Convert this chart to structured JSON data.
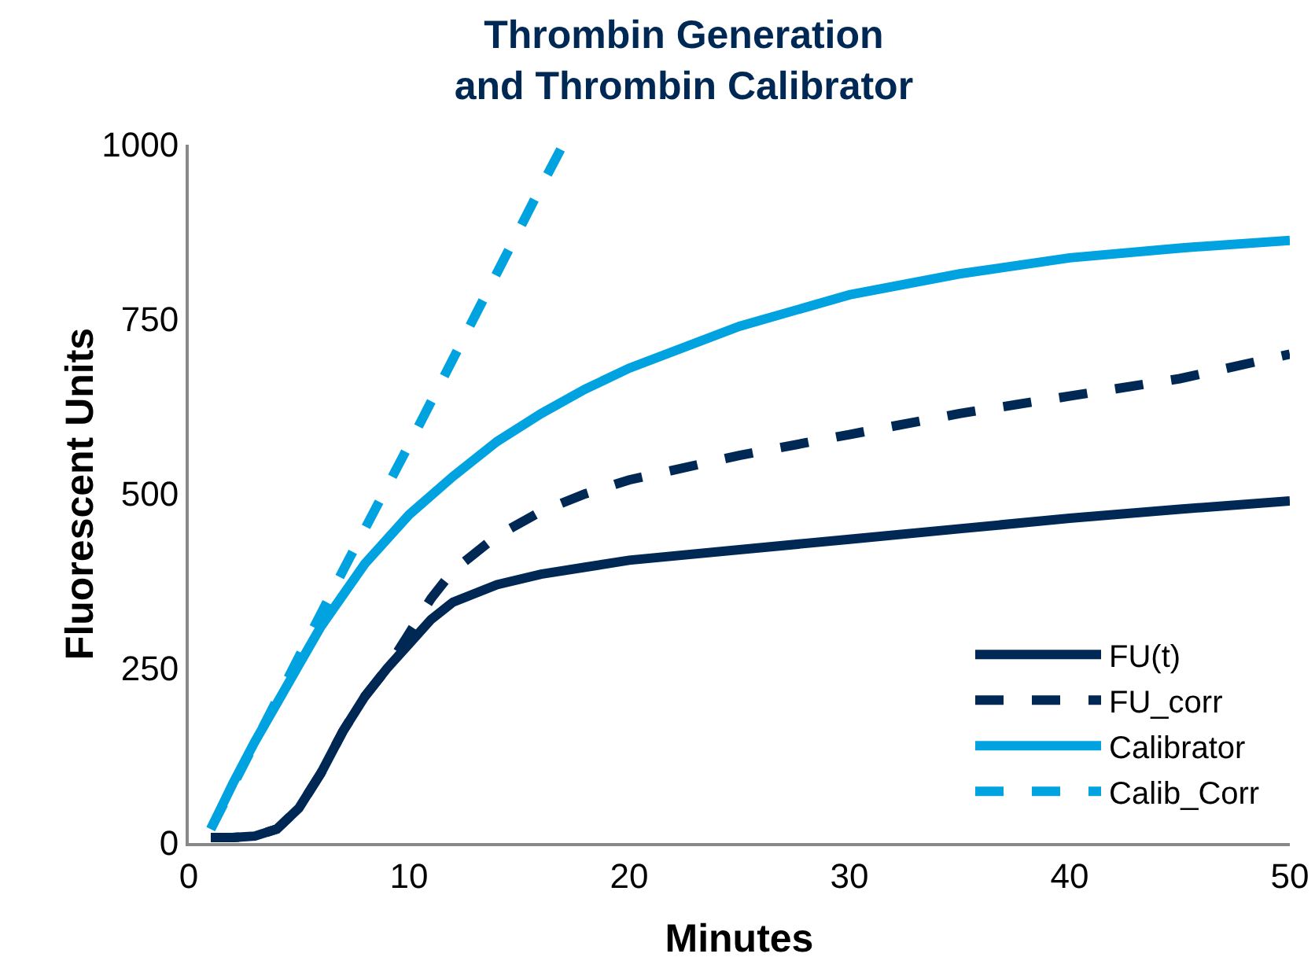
{
  "chart_data": {
    "type": "line",
    "title": "Thrombin Generation\nand Thrombin Calibrator",
    "xlabel": "Minutes",
    "ylabel": "Fluorescent Units",
    "xlim": [
      0,
      50
    ],
    "xticks": [
      0,
      10,
      20,
      30,
      40,
      50
    ],
    "ylim": [
      0,
      1000
    ],
    "yticks": [
      0,
      250,
      500,
      750,
      1000
    ],
    "grid": false,
    "legend": "bottom right",
    "marker": "none",
    "series": [
      {
        "name": "FU(t)",
        "color": "#002855",
        "line_style": "solid",
        "x": [
          1,
          2,
          3,
          4,
          5,
          6,
          7,
          8,
          9,
          10,
          11,
          12,
          14,
          16,
          18,
          20,
          25,
          30,
          35,
          40,
          45,
          50
        ],
        "values": [
          8,
          8,
          10,
          20,
          50,
          100,
          160,
          210,
          250,
          285,
          320,
          345,
          370,
          385,
          395,
          405,
          420,
          435,
          450,
          465,
          478,
          490
        ]
      },
      {
        "name": "FU_corr",
        "color": "#002855",
        "line_style": "dashed",
        "x": [
          1,
          2,
          3,
          4,
          5,
          6,
          7,
          8,
          9,
          10,
          11,
          12,
          14,
          16,
          18,
          20,
          25,
          30,
          35,
          40,
          45,
          50
        ],
        "values": [
          8,
          8,
          10,
          20,
          50,
          100,
          160,
          210,
          250,
          300,
          350,
          390,
          440,
          475,
          500,
          520,
          555,
          585,
          615,
          640,
          665,
          700
        ]
      },
      {
        "name": "Calibrator",
        "color": "#00a3e0",
        "line_style": "solid",
        "x": [
          1,
          2,
          3,
          4,
          5,
          6,
          8,
          10,
          12,
          14,
          16,
          18,
          20,
          25,
          30,
          35,
          40,
          45,
          50
        ],
        "values": [
          20,
          85,
          145,
          200,
          255,
          310,
          400,
          470,
          525,
          575,
          615,
          650,
          680,
          740,
          785,
          815,
          838,
          852,
          863
        ]
      },
      {
        "name": "Calib_Corr",
        "color": "#00a3e0",
        "line_style": "dashed",
        "x": [
          1,
          4,
          7,
          10,
          13,
          16,
          17
        ],
        "values": [
          20,
          205,
          390,
          570,
          755,
          940,
          1000
        ]
      }
    ]
  }
}
